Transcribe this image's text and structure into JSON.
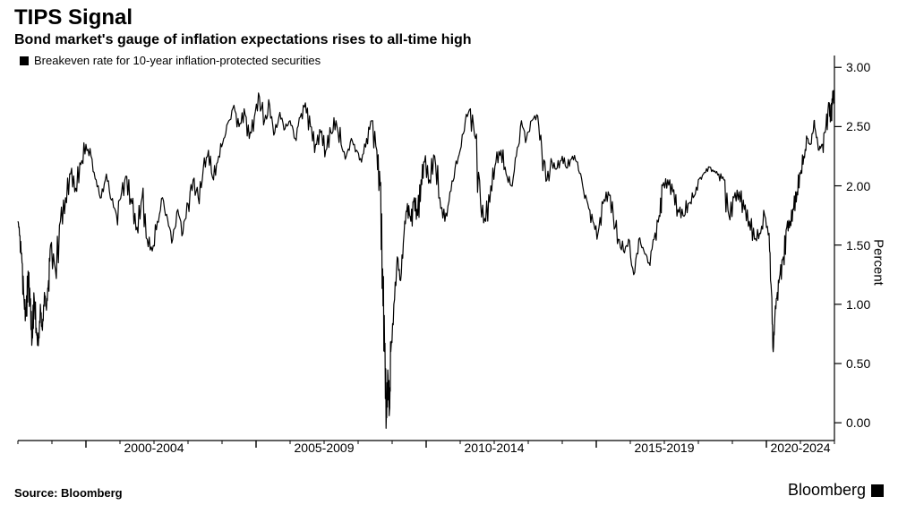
{
  "title": "TIPS Signal",
  "subtitle": "Bond market's gauge of inflation expectations rises to all-time high",
  "legend_label": "Breakeven rate for 10-year inflation-protected securities",
  "source_label": "Source: Bloomberg",
  "brand_label": "Bloomberg",
  "chart": {
    "type": "line",
    "background_color": "#ffffff",
    "line_color": "#000000",
    "line_width": 1.2,
    "axis_color": "#000000",
    "axis_width": 1.2,
    "tick_color": "#000000",
    "tick_len_major": 8,
    "tick_len_minor": 4,
    "font_family": "Arial",
    "tick_fontsize": 14,
    "x_range": [
      1998,
      2022
    ],
    "y_range": [
      -0.15,
      3.1
    ],
    "y_ticks": [
      0.0,
      0.5,
      1.0,
      1.5,
      2.0,
      2.5,
      3.0
    ],
    "y_tick_labels": [
      "0.00",
      "0.50",
      "1.00",
      "1.50",
      "2.00",
      "2.50",
      "3.00"
    ],
    "y_axis_title": "Percent",
    "x_tick_groups": [
      {
        "start": 2000,
        "end": 2004,
        "label": "2000-2004"
      },
      {
        "start": 2005,
        "end": 2009,
        "label": "2005-2009"
      },
      {
        "start": 2010,
        "end": 2014,
        "label": "2010-2014"
      },
      {
        "start": 2015,
        "end": 2019,
        "label": "2015-2019"
      },
      {
        "start": 2020,
        "end": 2024,
        "label": "2020-2024"
      }
    ],
    "series": [
      {
        "name": "breakeven",
        "color": "#000000",
        "points": [
          [
            1998.0,
            1.7
          ],
          [
            1998.06,
            1.58
          ],
          [
            1998.12,
            1.35
          ],
          [
            1998.18,
            1.05
          ],
          [
            1998.24,
            0.9
          ],
          [
            1998.3,
            1.28
          ],
          [
            1998.36,
            1.0
          ],
          [
            1998.42,
            0.72
          ],
          [
            1998.48,
            1.05
          ],
          [
            1998.54,
            0.8
          ],
          [
            1998.6,
            0.65
          ],
          [
            1998.66,
            1.0
          ],
          [
            1998.72,
            0.78
          ],
          [
            1998.78,
            1.1
          ],
          [
            1998.84,
            0.95
          ],
          [
            1998.9,
            1.2
          ],
          [
            1998.96,
            1.5
          ],
          [
            1999.1,
            1.3
          ],
          [
            1999.25,
            1.7
          ],
          [
            1999.4,
            1.9
          ],
          [
            1999.55,
            2.1
          ],
          [
            1999.7,
            1.98
          ],
          [
            1999.85,
            2.18
          ],
          [
            2000.0,
            2.35
          ],
          [
            2000.15,
            2.25
          ],
          [
            2000.3,
            2.05
          ],
          [
            2000.45,
            1.9
          ],
          [
            2000.6,
            2.1
          ],
          [
            2000.75,
            1.88
          ],
          [
            2000.9,
            1.75
          ],
          [
            2001.05,
            1.95
          ],
          [
            2001.2,
            2.08
          ],
          [
            2001.35,
            1.85
          ],
          [
            2001.5,
            1.65
          ],
          [
            2001.65,
            1.9
          ],
          [
            2001.8,
            1.55
          ],
          [
            2001.95,
            1.45
          ],
          [
            2002.1,
            1.7
          ],
          [
            2002.25,
            1.9
          ],
          [
            2002.4,
            1.72
          ],
          [
            2002.55,
            1.55
          ],
          [
            2002.7,
            1.8
          ],
          [
            2002.85,
            1.6
          ],
          [
            2003.0,
            1.85
          ],
          [
            2003.15,
            2.05
          ],
          [
            2003.3,
            1.9
          ],
          [
            2003.45,
            2.15
          ],
          [
            2003.6,
            2.3
          ],
          [
            2003.75,
            2.05
          ],
          [
            2003.9,
            2.25
          ],
          [
            2004.05,
            2.4
          ],
          [
            2004.2,
            2.55
          ],
          [
            2004.35,
            2.68
          ],
          [
            2004.5,
            2.5
          ],
          [
            2004.65,
            2.65
          ],
          [
            2004.8,
            2.4
          ],
          [
            2004.95,
            2.58
          ],
          [
            2005.1,
            2.75
          ],
          [
            2005.25,
            2.55
          ],
          [
            2005.4,
            2.68
          ],
          [
            2005.55,
            2.45
          ],
          [
            2005.7,
            2.62
          ],
          [
            2005.85,
            2.48
          ],
          [
            2006.0,
            2.55
          ],
          [
            2006.15,
            2.4
          ],
          [
            2006.3,
            2.58
          ],
          [
            2006.45,
            2.7
          ],
          [
            2006.6,
            2.5
          ],
          [
            2006.75,
            2.35
          ],
          [
            2006.9,
            2.45
          ],
          [
            2007.05,
            2.3
          ],
          [
            2007.2,
            2.45
          ],
          [
            2007.35,
            2.55
          ],
          [
            2007.5,
            2.35
          ],
          [
            2007.65,
            2.25
          ],
          [
            2007.8,
            2.4
          ],
          [
            2007.95,
            2.3
          ],
          [
            2008.1,
            2.2
          ],
          [
            2008.25,
            2.4
          ],
          [
            2008.4,
            2.55
          ],
          [
            2008.55,
            2.3
          ],
          [
            2008.65,
            2.0
          ],
          [
            2008.72,
            1.3
          ],
          [
            2008.78,
            0.6
          ],
          [
            2008.83,
            0.05
          ],
          [
            2008.88,
            0.4
          ],
          [
            2008.92,
            0.1
          ],
          [
            2008.96,
            0.6
          ],
          [
            2009.05,
            1.0
          ],
          [
            2009.15,
            1.4
          ],
          [
            2009.25,
            1.2
          ],
          [
            2009.35,
            1.6
          ],
          [
            2009.45,
            1.85
          ],
          [
            2009.55,
            1.7
          ],
          [
            2009.65,
            1.9
          ],
          [
            2009.75,
            1.75
          ],
          [
            2009.85,
            2.05
          ],
          [
            2009.95,
            2.2
          ],
          [
            2010.1,
            2.05
          ],
          [
            2010.25,
            2.25
          ],
          [
            2010.4,
            1.9
          ],
          [
            2010.55,
            1.7
          ],
          [
            2010.7,
            1.95
          ],
          [
            2010.85,
            2.15
          ],
          [
            2011.0,
            2.3
          ],
          [
            2011.15,
            2.55
          ],
          [
            2011.3,
            2.65
          ],
          [
            2011.45,
            2.4
          ],
          [
            2011.6,
            1.85
          ],
          [
            2011.75,
            1.7
          ],
          [
            2011.9,
            2.0
          ],
          [
            2012.05,
            2.2
          ],
          [
            2012.2,
            2.3
          ],
          [
            2012.35,
            2.1
          ],
          [
            2012.5,
            2.0
          ],
          [
            2012.65,
            2.25
          ],
          [
            2012.8,
            2.55
          ],
          [
            2012.95,
            2.4
          ],
          [
            2013.1,
            2.55
          ],
          [
            2013.25,
            2.6
          ],
          [
            2013.4,
            2.3
          ],
          [
            2013.55,
            2.05
          ],
          [
            2013.7,
            2.2
          ],
          [
            2013.85,
            2.15
          ],
          [
            2014.0,
            2.25
          ],
          [
            2014.15,
            2.15
          ],
          [
            2014.3,
            2.25
          ],
          [
            2014.45,
            2.2
          ],
          [
            2014.6,
            2.0
          ],
          [
            2014.75,
            1.85
          ],
          [
            2014.9,
            1.7
          ],
          [
            2015.05,
            1.6
          ],
          [
            2015.2,
            1.85
          ],
          [
            2015.35,
            1.95
          ],
          [
            2015.5,
            1.75
          ],
          [
            2015.65,
            1.55
          ],
          [
            2015.8,
            1.45
          ],
          [
            2015.95,
            1.55
          ],
          [
            2016.1,
            1.25
          ],
          [
            2016.25,
            1.55
          ],
          [
            2016.4,
            1.45
          ],
          [
            2016.55,
            1.35
          ],
          [
            2016.7,
            1.55
          ],
          [
            2016.85,
            1.75
          ],
          [
            2016.95,
            2.0
          ],
          [
            2017.1,
            2.05
          ],
          [
            2017.25,
            1.95
          ],
          [
            2017.4,
            1.8
          ],
          [
            2017.55,
            1.75
          ],
          [
            2017.7,
            1.85
          ],
          [
            2017.85,
            1.9
          ],
          [
            2018.0,
            2.05
          ],
          [
            2018.15,
            2.1
          ],
          [
            2018.3,
            2.16
          ],
          [
            2018.45,
            2.12
          ],
          [
            2018.6,
            2.1
          ],
          [
            2018.75,
            2.05
          ],
          [
            2018.9,
            1.75
          ],
          [
            2019.05,
            1.9
          ],
          [
            2019.2,
            1.95
          ],
          [
            2019.35,
            1.8
          ],
          [
            2019.5,
            1.7
          ],
          [
            2019.65,
            1.55
          ],
          [
            2019.8,
            1.6
          ],
          [
            2019.95,
            1.75
          ],
          [
            2020.08,
            1.6
          ],
          [
            2020.15,
            1.1
          ],
          [
            2020.2,
            0.6
          ],
          [
            2020.25,
            0.9
          ],
          [
            2020.32,
            1.1
          ],
          [
            2020.4,
            1.25
          ],
          [
            2020.5,
            1.4
          ],
          [
            2020.6,
            1.65
          ],
          [
            2020.7,
            1.7
          ],
          [
            2020.8,
            1.8
          ],
          [
            2020.9,
            1.95
          ],
          [
            2021.0,
            2.1
          ],
          [
            2021.1,
            2.25
          ],
          [
            2021.2,
            2.4
          ],
          [
            2021.3,
            2.35
          ],
          [
            2021.4,
            2.55
          ],
          [
            2021.45,
            2.45
          ],
          [
            2021.55,
            2.3
          ],
          [
            2021.65,
            2.35
          ],
          [
            2021.75,
            2.5
          ],
          [
            2021.85,
            2.7
          ],
          [
            2021.9,
            2.55
          ],
          [
            2021.95,
            2.8
          ],
          [
            2022.0,
            2.7
          ]
        ]
      }
    ]
  }
}
